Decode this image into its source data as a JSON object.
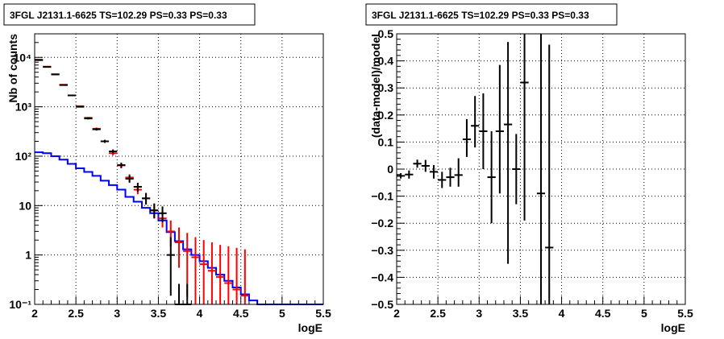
{
  "chart_data": [
    {
      "type": "step-histogram-with-errorbars",
      "title": "3FGL J2131.1-6625 TS=102.29 PS=0.33 PS=0.33",
      "xlabel": "logE",
      "ylabel": "Nb of counts",
      "xlim": [
        2,
        5.5
      ],
      "ylim": [
        0.1,
        30000
      ],
      "yscale": "log",
      "grid": true,
      "x_ticks": [
        2,
        2.5,
        3,
        3.5,
        4,
        4.5,
        5,
        5.5
      ],
      "x_tick_labels": [
        "2",
        "2.5",
        "3",
        "3.5",
        "4",
        "4.5",
        "5",
        "5.5"
      ],
      "y_ticks": [
        0.1,
        1,
        10,
        100,
        1000,
        10000
      ],
      "y_tick_labels": [
        "10⁻¹",
        "1",
        "10",
        "10²",
        "10³",
        "10⁴"
      ],
      "bin_width": 0.1,
      "series": [
        {
          "color": "#0000ff",
          "style": "step",
          "x": [
            2.05,
            2.15,
            2.25,
            2.35,
            2.45,
            2.55,
            2.65,
            2.75,
            2.85,
            2.95,
            3.05,
            3.15,
            3.25,
            3.35,
            3.45,
            3.55,
            3.65,
            3.75,
            3.85,
            3.95,
            4.05,
            4.15,
            4.25,
            4.35,
            4.45,
            4.55,
            4.65,
            4.75,
            4.85,
            4.95,
            5.05,
            5.15,
            5.25,
            5.35,
            5.45
          ],
          "values": [
            120,
            115,
            100,
            85,
            70,
            57,
            48,
            40,
            32,
            26,
            21,
            15,
            12,
            9,
            7,
            5,
            2.9,
            1.9,
            1.3,
            1.0,
            0.75,
            0.55,
            0.4,
            0.3,
            0.22,
            0.16,
            0.12,
            0.1,
            0.1,
            0.1,
            0.1,
            0.1,
            0.1,
            0.1,
            0.1
          ]
        },
        {
          "color": "#ff0000",
          "style": "errorbars",
          "x": [
            2.05,
            2.15,
            2.25,
            2.35,
            2.45,
            2.55,
            2.65,
            2.75,
            2.85,
            2.95,
            3.05,
            3.15,
            3.25,
            3.35,
            3.45,
            3.55,
            3.65,
            3.75,
            3.85,
            3.95,
            4.05,
            4.15,
            4.25,
            4.35,
            4.45,
            4.55
          ],
          "values": [
            9000,
            6500,
            4500,
            2800,
            1700,
            1030,
            600,
            360,
            200,
            115,
            65,
            37,
            21,
            14,
            8,
            5.5,
            3.0,
            1.8,
            1.2,
            0.9,
            0.65,
            0.48,
            0.36,
            0.27,
            0.2,
            0.15
          ],
          "lower": [
            8900,
            6400,
            4430,
            2750,
            1660,
            1000,
            575,
            340,
            186,
            104,
            57,
            31,
            17,
            10.5,
            5.5,
            3.6,
            1.5,
            0.55,
            0.15,
            0.1,
            0.1,
            0.1,
            0.1,
            0.1,
            0.1,
            0.1
          ],
          "upper": [
            9100,
            6600,
            4570,
            2850,
            1740,
            1060,
            625,
            380,
            214,
            126,
            73,
            43,
            25,
            18,
            11,
            8,
            5,
            3.6,
            2.8,
            2.3,
            2.0,
            1.8,
            1.6,
            1.5,
            1.4,
            1.3
          ]
        },
        {
          "color": "#000000",
          "style": "errorbars",
          "x": [
            2.05,
            2.15,
            2.25,
            2.35,
            2.45,
            2.55,
            2.65,
            2.75,
            2.85,
            2.95,
            3.05,
            3.15,
            3.25,
            3.35,
            3.45,
            3.55,
            3.65,
            3.75,
            3.85
          ],
          "values": [
            8800,
            6400,
            4550,
            2750,
            1700,
            1000,
            580,
            350,
            200,
            125,
            66,
            35,
            24,
            14,
            8,
            7,
            1,
            0.1,
            0.1
          ],
          "lower": [
            8700,
            6300,
            4480,
            2700,
            1660,
            970,
            555,
            330,
            186,
            113,
            58,
            29,
            19,
            10.5,
            5.5,
            4.6,
            0.15,
            0.1,
            0.1
          ],
          "upper": [
            8900,
            6500,
            4620,
            2800,
            1740,
            1030,
            605,
            370,
            214,
            137,
            74,
            41,
            29,
            18,
            11,
            9.6,
            2.3,
            0.26,
            0.26
          ]
        }
      ]
    },
    {
      "type": "scatter-with-errorbars",
      "title": "3FGL J2131.1-6625 TS=102.29 PS=0.33 PS=0.33",
      "xlabel": "logE",
      "ylabel": "(data-model)/model",
      "xlim": [
        2,
        5.5
      ],
      "ylim": [
        -0.5,
        0.5
      ],
      "grid": true,
      "x_ticks": [
        2,
        2.5,
        3,
        3.5,
        4,
        4.5,
        5,
        5.5
      ],
      "x_tick_labels": [
        "2",
        "2.5",
        "3",
        "3.5",
        "4",
        "4.5",
        "5",
        "5.5"
      ],
      "y_ticks": [
        -0.5,
        -0.4,
        -0.3,
        -0.2,
        -0.1,
        0,
        0.1,
        0.2,
        0.3,
        0.4,
        0.5
      ],
      "y_tick_labels": [
        "−0.5",
        "−0.4",
        "−0.3",
        "−0.2",
        "−0.1",
        "0",
        "0.1",
        "0.2",
        "0.3",
        "0.4",
        "0.5"
      ],
      "bin_width": 0.1,
      "series": [
        {
          "color": "#000000",
          "x": [
            2.05,
            2.15,
            2.25,
            2.35,
            2.45,
            2.55,
            2.65,
            2.75,
            2.85,
            2.95,
            3.05,
            3.15,
            3.25,
            3.35,
            3.45,
            3.55,
            3.75,
            3.85
          ],
          "values": [
            -0.025,
            -0.02,
            0.02,
            0.012,
            -0.01,
            -0.04,
            -0.03,
            -0.022,
            0.11,
            0.16,
            0.14,
            -0.03,
            0.14,
            0.165,
            0.0,
            0.32,
            -0.09,
            -0.29
          ],
          "lower": [
            -0.035,
            -0.035,
            0.005,
            -0.01,
            -0.035,
            -0.07,
            -0.065,
            -0.065,
            0.045,
            0.08,
            0.0,
            -0.2,
            -0.09,
            -0.35,
            -0.13,
            -0.19,
            -0.5,
            -0.5
          ],
          "upper": [
            -0.015,
            -0.005,
            0.035,
            0.034,
            0.015,
            -0.01,
            0.005,
            0.04,
            0.185,
            0.27,
            0.28,
            0.14,
            0.385,
            0.47,
            0.13,
            0.5,
            0.5,
            0.46
          ]
        }
      ]
    }
  ]
}
